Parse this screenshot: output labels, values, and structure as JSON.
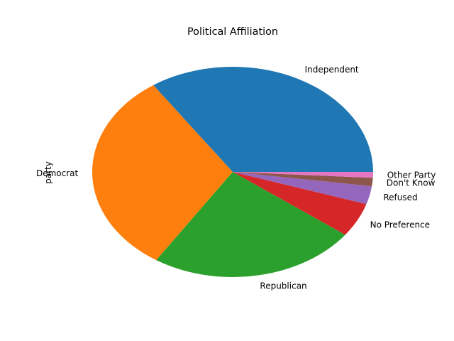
{
  "chart_data": {
    "type": "pie",
    "title": "Political Affiliation",
    "ylabel": "party",
    "start_angle_deg": 0,
    "direction": "counterclockwise",
    "slices": [
      {
        "label": "Independent",
        "value": 34.9,
        "color": "#1f77b4"
      },
      {
        "label": "Democrat",
        "value": 31.6,
        "color": "#ff7f0e"
      },
      {
        "label": "Republican",
        "value": 24.2,
        "color": "#2ca02c"
      },
      {
        "label": "No Preference",
        "value": 5.3,
        "color": "#d62728"
      },
      {
        "label": "Refused",
        "value": 2.8,
        "color": "#9467bd"
      },
      {
        "label": "Don't Know",
        "value": 1.3,
        "color": "#8c564b"
      },
      {
        "label": "Other Party",
        "value": 0.9,
        "color": "#e377c2"
      }
    ]
  }
}
